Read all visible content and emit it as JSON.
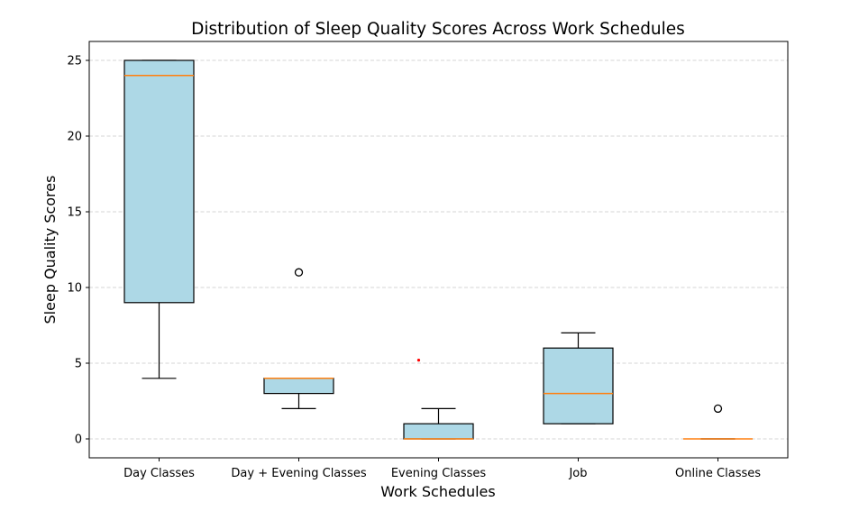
{
  "chart_data": {
    "type": "box",
    "title": "Distribution of Sleep Quality Scores Across Work Schedules",
    "xlabel": "Work Schedules",
    "ylabel": "Sleep Quality Scores",
    "ylim": [
      -1.25,
      26.25
    ],
    "yticks": [
      0,
      5,
      10,
      15,
      20,
      25
    ],
    "grid": "horizontal dashed",
    "colors": {
      "box_fill": "#add8e6",
      "box_edge": "#000000",
      "median": "#ff7f0e",
      "grid": "#c7c7c7",
      "flier_edge": "#000000",
      "marker_red": "#ff0000"
    },
    "categories": [
      "Day Classes",
      "Day + Evening Classes",
      "Evening Classes",
      "Job",
      "Online Classes"
    ],
    "boxes": [
      {
        "category": "Day Classes",
        "whisker_low": 4,
        "q1": 9,
        "median": 24,
        "q3": 25,
        "whisker_high": 25,
        "fliers": []
      },
      {
        "category": "Day + Evening Classes",
        "whisker_low": 2,
        "q1": 3,
        "median": 4,
        "q3": 4,
        "whisker_high": 4,
        "fliers": [
          11
        ]
      },
      {
        "category": "Evening Classes",
        "whisker_low": 0,
        "q1": 0,
        "median": 0,
        "q3": 1,
        "whisker_high": 2,
        "fliers": []
      },
      {
        "category": "Job",
        "whisker_low": 1,
        "q1": 1,
        "median": 3,
        "q3": 6,
        "whisker_high": 7,
        "fliers": []
      },
      {
        "category": "Online Classes",
        "whisker_low": 0,
        "q1": 0,
        "median": 0,
        "q3": 0,
        "whisker_high": 0,
        "fliers": [
          2
        ]
      }
    ],
    "extra_points": [
      {
        "category": "Evening Classes",
        "value": 5.2,
        "color": "#ff0000"
      }
    ]
  }
}
